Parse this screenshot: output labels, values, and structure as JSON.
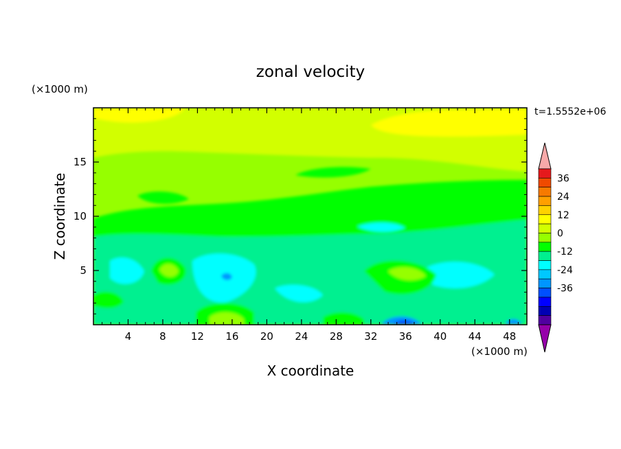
{
  "chart_data": {
    "type": "heatmap",
    "title": "zonal velocity",
    "xlabel": "X coordinate",
    "ylabel": "Z coordinate",
    "x_unit": "(×1000 m)",
    "y_unit": "(×1000 m)",
    "time_label": "t=1.5552e+06",
    "xlim": [
      0,
      50
    ],
    "ylim": [
      0,
      20
    ],
    "x_ticks": [
      4,
      8,
      12,
      16,
      20,
      24,
      28,
      32,
      36,
      40,
      44,
      48
    ],
    "y_ticks": [
      5,
      10,
      15
    ],
    "colorbar": {
      "labels": [
        36,
        24,
        12,
        0,
        -12,
        -24,
        -36
      ],
      "colors": [
        "#f7a9a9",
        "#e5191c",
        "#f04a00",
        "#f77a00",
        "#ffa000",
        "#ffd200",
        "#ffff00",
        "#d2ff00",
        "#96ff00",
        "#00ff00",
        "#00f090",
        "#00ffff",
        "#00c8ff",
        "#0096ff",
        "#0050ff",
        "#0000ff",
        "#0000b4",
        "#5000a0",
        "#9600aa"
      ],
      "background_colors": [
        "#ffff00",
        "#d2ff00",
        "#96ff00",
        "#00ff00",
        "#00f090",
        "#00ffff"
      ],
      "feature_colors": [
        "#0096ff",
        "#0050ff",
        "#0000ff"
      ]
    }
  }
}
